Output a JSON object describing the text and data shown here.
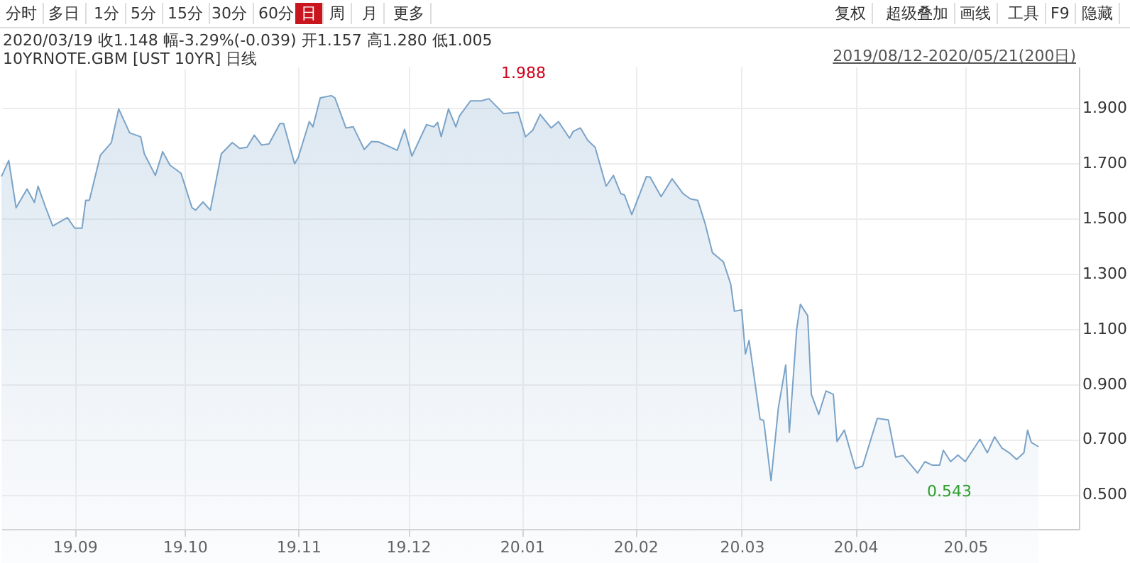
{
  "chart_data": {
    "type": "area",
    "title": "10YRNOTE.GBM [UST 10YR] 日线",
    "subtitle": "2020/03/19 收1.148 幅-3.29%(-0.039) 开1.157 高1.280 低1.005",
    "annotations": [
      "分时",
      "多日",
      "1分",
      "5分",
      "15分",
      "30分",
      "60分",
      "日",
      "周",
      "月",
      "更多",
      "复权",
      "超级叠加",
      "画线",
      "工具",
      "F9",
      "隐藏",
      "2019/08/12-2020/05/21(200日)",
      "1.988",
      "0.543"
    ],
    "series": [
      {
        "color": "#7aa3c8",
        "x": [
          "2019-08-12",
          "2019-08-14",
          "2019-08-16",
          "2019-08-19",
          "2019-08-21",
          "2019-08-22",
          "2019-08-24",
          "2019-08-26",
          "2019-08-30",
          "2019-09-01",
          "2019-09-03",
          "2019-09-04",
          "2019-09-05",
          "2019-09-08",
          "2019-09-11",
          "2019-09-13",
          "2019-09-16",
          "2019-09-19",
          "2019-09-20",
          "2019-09-23",
          "2019-09-25",
          "2019-09-27",
          "2019-09-30",
          "2019-10-03",
          "2019-10-04",
          "2019-10-06",
          "2019-10-08",
          "2019-10-11",
          "2019-10-14",
          "2019-10-16",
          "2019-10-18",
          "2019-10-20",
          "2019-10-22",
          "2019-10-24",
          "2019-10-27",
          "2019-10-28",
          "2019-10-31",
          "2019-11-01",
          "2019-11-04",
          "2019-11-05",
          "2019-11-07",
          "2019-11-10",
          "2019-11-11",
          "2019-11-14",
          "2019-11-16",
          "2019-11-19",
          "2019-11-21",
          "2019-11-23",
          "2019-11-28",
          "2019-11-30",
          "2019-12-02",
          "2019-12-06",
          "2019-12-08",
          "2019-12-09",
          "2019-12-10",
          "2019-12-12",
          "2019-12-14",
          "2019-12-15",
          "2019-12-18",
          "2019-12-21",
          "2019-12-23",
          "2019-12-27",
          "2019-12-31",
          "2020-01-02",
          "2020-01-04",
          "2020-01-06",
          "2020-01-09",
          "2020-01-11",
          "2020-01-14",
          "2020-01-15",
          "2020-01-17",
          "2020-01-19",
          "2020-01-21",
          "2020-01-24",
          "2020-01-26",
          "2020-01-28",
          "2020-01-29",
          "2020-01-31",
          "2020-02-04",
          "2020-02-05",
          "2020-02-08",
          "2020-02-11",
          "2020-02-14",
          "2020-02-16",
          "2020-02-18",
          "2020-02-20",
          "2020-02-22",
          "2020-02-25",
          "2020-02-27",
          "2020-02-28",
          "2020-03-01",
          "2020-03-02",
          "2020-03-03",
          "2020-03-06",
          "2020-03-07",
          "2020-03-09",
          "2020-03-11",
          "2020-03-13",
          "2020-03-14",
          "2020-03-16",
          "2020-03-17",
          "2020-03-19",
          "2020-03-20",
          "2020-03-22",
          "2020-03-24",
          "2020-03-26",
          "2020-03-27",
          "2020-03-29",
          "2020-04-01",
          "2020-04-03",
          "2020-04-07",
          "2020-04-10",
          "2020-04-12",
          "2020-04-14",
          "2020-04-18",
          "2020-04-20",
          "2020-04-22",
          "2020-04-24",
          "2020-04-25",
          "2020-04-27",
          "2020-04-29",
          "2020-05-01",
          "2020-05-05",
          "2020-05-07",
          "2020-05-09",
          "2020-05-11",
          "2020-05-13",
          "2020-05-15",
          "2020-05-17",
          "2020-05-18",
          "2020-05-19",
          "2020-05-21"
        ],
        "values": [
          1.652,
          1.71,
          1.539,
          1.607,
          1.558,
          1.617,
          1.542,
          1.473,
          1.503,
          1.465,
          1.465,
          1.566,
          1.566,
          1.729,
          1.775,
          1.897,
          1.81,
          1.796,
          1.734,
          1.656,
          1.742,
          1.693,
          1.664,
          1.539,
          1.53,
          1.56,
          1.53,
          1.734,
          1.775,
          1.754,
          1.758,
          1.802,
          1.766,
          1.77,
          1.844,
          1.844,
          1.698,
          1.721,
          1.851,
          1.832,
          1.937,
          1.945,
          1.937,
          1.828,
          1.832,
          1.75,
          1.779,
          1.777,
          1.747,
          1.823,
          1.726,
          1.84,
          1.832,
          1.848,
          1.796,
          1.897,
          1.832,
          1.872,
          1.926,
          1.926,
          1.934,
          1.88,
          1.885,
          1.796,
          1.82,
          1.877,
          1.828,
          1.851,
          1.791,
          1.815,
          1.828,
          1.783,
          1.758,
          1.617,
          1.656,
          1.59,
          1.585,
          1.514,
          1.652,
          1.65,
          1.579,
          1.644,
          1.59,
          1.571,
          1.566,
          1.482,
          1.376,
          1.343,
          1.262,
          1.164,
          1.169,
          1.009,
          1.058,
          0.773,
          0.768,
          0.55,
          0.814,
          0.969,
          0.725,
          1.099,
          1.189,
          1.148,
          0.863,
          0.79,
          0.875,
          0.863,
          0.692,
          0.733,
          0.594,
          0.603,
          0.776,
          0.77,
          0.635,
          0.641,
          0.578,
          0.619,
          0.606,
          0.606,
          0.66,
          0.619,
          0.643,
          0.619,
          0.7,
          0.651,
          0.709,
          0.668,
          0.651,
          0.627,
          0.651,
          0.733,
          0.689,
          0.673
        ]
      }
    ],
    "xlim": [
      "2019-08-12",
      "2020-06-01"
    ],
    "xticks": [
      {
        "value": "2019-09-01",
        "label": "19.09"
      },
      {
        "value": "2019-10-01",
        "label": "19.10"
      },
      {
        "value": "2019-11-01",
        "label": "19.11"
      },
      {
        "value": "2019-12-01",
        "label": "19.12"
      },
      {
        "value": "2020-01-01",
        "label": "20.01"
      },
      {
        "value": "2020-02-01",
        "label": "20.02"
      },
      {
        "value": "2020-03-01",
        "label": "20.03"
      },
      {
        "value": "2020-04-01",
        "label": "20.04"
      },
      {
        "value": "2020-05-01",
        "label": "20.05"
      }
    ],
    "ylim": [
      0.375,
      2.05
    ],
    "yticks": [
      {
        "value": 0.5,
        "label": "0.500"
      },
      {
        "value": 0.7,
        "label": "0.700"
      },
      {
        "value": 0.9,
        "label": "0.900"
      },
      {
        "value": 1.1,
        "label": "1.100"
      },
      {
        "value": 1.3,
        "label": "1.300"
      },
      {
        "value": 1.5,
        "label": "1.500"
      },
      {
        "value": 1.7,
        "label": "1.700"
      },
      {
        "value": 1.9,
        "label": "1.900"
      }
    ],
    "grid": true
  }
}
